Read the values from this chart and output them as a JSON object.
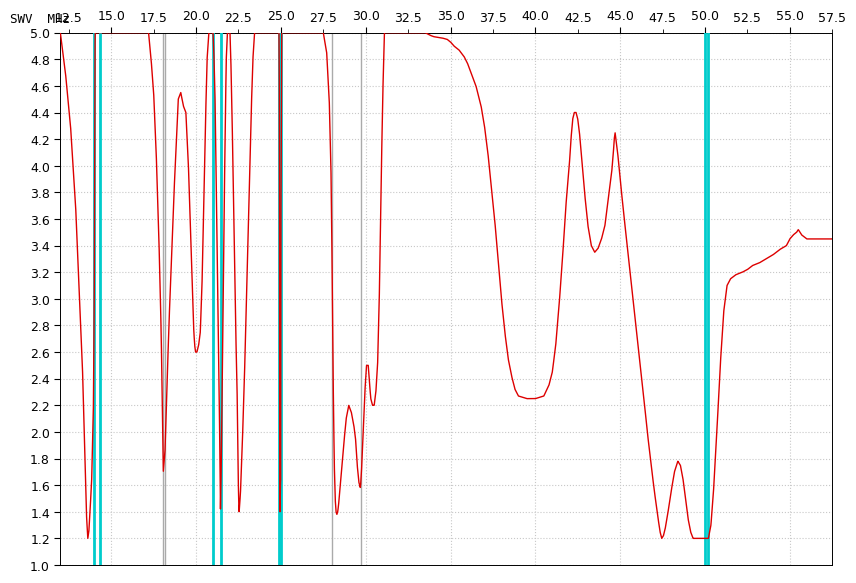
{
  "xlim": [
    12.0,
    57.5
  ],
  "ylim": [
    1.0,
    5.0
  ],
  "xticks_major": [
    15.0,
    20.0,
    25.0,
    30.0,
    35.0,
    40.0,
    45.0,
    50.0,
    55.0
  ],
  "xticks_minor_labels": [
    12.5,
    17.5,
    22.5,
    27.5,
    32.5,
    37.5,
    42.5,
    47.5,
    52.5,
    57.5
  ],
  "cyan_lines": [
    14.0,
    14.35,
    21.0,
    21.45,
    24.89,
    24.99,
    50.0,
    50.2
  ],
  "gray_lines": [
    18.068,
    18.168,
    28.0,
    29.7
  ],
  "background_color": "#ffffff",
  "grid_color": "#c8c8c8",
  "curve_color": "#dd0000",
  "cyan_color": "#00cccc",
  "gray_color": "#aaaaaa",
  "label_color": "#000000",
  "tick_fontsize": 9,
  "figsize": [
    8.39,
    5.85
  ],
  "dpi": 100,
  "waypoints": [
    [
      12.0,
      5.0
    ],
    [
      12.3,
      4.7
    ],
    [
      12.6,
      4.3
    ],
    [
      12.9,
      3.7
    ],
    [
      13.1,
      3.1
    ],
    [
      13.3,
      2.5
    ],
    [
      13.45,
      1.8
    ],
    [
      13.55,
      1.35
    ],
    [
      13.62,
      1.2
    ],
    [
      13.68,
      1.25
    ],
    [
      13.75,
      1.4
    ],
    [
      13.85,
      1.65
    ],
    [
      13.95,
      2.2
    ],
    [
      14.0,
      3.0
    ],
    [
      14.05,
      5.0
    ],
    [
      14.35,
      5.0
    ],
    [
      14.5,
      5.0
    ],
    [
      15.0,
      5.0
    ],
    [
      16.0,
      5.0
    ],
    [
      17.0,
      5.0
    ],
    [
      17.2,
      5.0
    ],
    [
      17.35,
      4.8
    ],
    [
      17.5,
      4.55
    ],
    [
      17.65,
      4.1
    ],
    [
      17.8,
      3.5
    ],
    [
      17.9,
      3.0
    ],
    [
      17.95,
      2.7
    ],
    [
      18.0,
      2.3
    ],
    [
      18.05,
      1.9
    ],
    [
      18.068,
      1.7
    ],
    [
      18.1,
      1.75
    ],
    [
      18.168,
      1.85
    ],
    [
      18.25,
      2.2
    ],
    [
      18.4,
      2.8
    ],
    [
      18.55,
      3.3
    ],
    [
      18.7,
      3.8
    ],
    [
      18.85,
      4.2
    ],
    [
      18.95,
      4.5
    ],
    [
      19.1,
      4.55
    ],
    [
      19.25,
      4.45
    ],
    [
      19.4,
      4.4
    ],
    [
      19.55,
      4.0
    ],
    [
      19.65,
      3.6
    ],
    [
      19.75,
      3.2
    ],
    [
      19.82,
      2.9
    ],
    [
      19.87,
      2.75
    ],
    [
      19.92,
      2.65
    ],
    [
      19.97,
      2.6
    ],
    [
      20.05,
      2.6
    ],
    [
      20.15,
      2.65
    ],
    [
      20.25,
      2.75
    ],
    [
      20.35,
      3.1
    ],
    [
      20.45,
      3.7
    ],
    [
      20.55,
      4.3
    ],
    [
      20.65,
      4.8
    ],
    [
      20.75,
      5.0
    ],
    [
      21.0,
      5.0
    ],
    [
      21.05,
      4.85
    ],
    [
      21.12,
      4.5
    ],
    [
      21.2,
      3.8
    ],
    [
      21.28,
      3.0
    ],
    [
      21.35,
      2.4
    ],
    [
      21.4,
      1.9
    ],
    [
      21.43,
      1.55
    ],
    [
      21.44,
      1.4
    ],
    [
      21.45,
      1.5
    ],
    [
      21.48,
      1.7
    ],
    [
      21.52,
      2.1
    ],
    [
      21.58,
      2.8
    ],
    [
      21.65,
      3.6
    ],
    [
      21.72,
      4.3
    ],
    [
      21.78,
      4.8
    ],
    [
      21.85,
      5.0
    ],
    [
      22.0,
      5.0
    ],
    [
      22.05,
      4.8
    ],
    [
      22.12,
      4.4
    ],
    [
      22.2,
      3.8
    ],
    [
      22.28,
      3.2
    ],
    [
      22.35,
      2.7
    ],
    [
      22.42,
      2.3
    ],
    [
      22.47,
      1.8
    ],
    [
      22.5,
      1.55
    ],
    [
      22.52,
      1.45
    ],
    [
      22.54,
      1.4
    ],
    [
      22.57,
      1.45
    ],
    [
      22.62,
      1.55
    ],
    [
      22.68,
      1.75
    ],
    [
      22.75,
      2.0
    ],
    [
      22.85,
      2.4
    ],
    [
      22.95,
      2.9
    ],
    [
      23.05,
      3.4
    ],
    [
      23.15,
      3.9
    ],
    [
      23.25,
      4.4
    ],
    [
      23.35,
      4.8
    ],
    [
      23.45,
      5.0
    ],
    [
      24.89,
      5.0
    ],
    [
      24.91,
      4.5
    ],
    [
      24.92,
      3.5
    ],
    [
      24.925,
      2.5
    ],
    [
      24.93,
      1.8
    ],
    [
      24.935,
      1.5
    ],
    [
      24.94,
      1.4
    ],
    [
      24.945,
      1.4
    ],
    [
      24.95,
      1.42
    ],
    [
      24.955,
      1.45
    ],
    [
      24.96,
      1.5
    ],
    [
      24.97,
      1.6
    ],
    [
      24.975,
      1.62
    ],
    [
      24.98,
      1.62
    ],
    [
      24.985,
      1.62
    ],
    [
      24.99,
      1.65
    ],
    [
      24.995,
      2.2
    ],
    [
      25.0,
      3.5
    ],
    [
      25.05,
      5.0
    ],
    [
      25.5,
      5.0
    ],
    [
      26.0,
      5.0
    ],
    [
      27.0,
      5.0
    ],
    [
      27.5,
      5.0
    ],
    [
      27.7,
      4.85
    ],
    [
      27.85,
      4.5
    ],
    [
      27.95,
      4.0
    ],
    [
      28.0,
      3.5
    ],
    [
      28.05,
      2.8
    ],
    [
      28.1,
      2.2
    ],
    [
      28.15,
      1.75
    ],
    [
      28.2,
      1.5
    ],
    [
      28.25,
      1.4
    ],
    [
      28.3,
      1.38
    ],
    [
      28.35,
      1.4
    ],
    [
      28.4,
      1.45
    ],
    [
      28.5,
      1.6
    ],
    [
      28.6,
      1.75
    ],
    [
      28.7,
      1.9
    ],
    [
      28.85,
      2.1
    ],
    [
      29.0,
      2.2
    ],
    [
      29.15,
      2.15
    ],
    [
      29.3,
      2.05
    ],
    [
      29.4,
      1.95
    ],
    [
      29.5,
      1.75
    ],
    [
      29.6,
      1.62
    ],
    [
      29.65,
      1.6
    ],
    [
      29.68,
      1.58
    ],
    [
      29.7,
      1.6
    ],
    [
      29.75,
      1.7
    ],
    [
      29.85,
      2.0
    ],
    [
      29.95,
      2.3
    ],
    [
      30.05,
      2.5
    ],
    [
      30.15,
      2.5
    ],
    [
      30.2,
      2.4
    ],
    [
      30.3,
      2.25
    ],
    [
      30.4,
      2.2
    ],
    [
      30.5,
      2.2
    ],
    [
      30.6,
      2.3
    ],
    [
      30.7,
      2.5
    ],
    [
      30.8,
      3.0
    ],
    [
      30.9,
      3.8
    ],
    [
      31.0,
      4.5
    ],
    [
      31.1,
      5.0
    ],
    [
      32.0,
      5.0
    ],
    [
      33.0,
      5.0
    ],
    [
      33.5,
      5.0
    ],
    [
      33.8,
      4.98
    ],
    [
      34.0,
      4.97
    ],
    [
      34.5,
      4.96
    ],
    [
      34.8,
      4.95
    ],
    [
      35.0,
      4.93
    ],
    [
      35.2,
      4.9
    ],
    [
      35.5,
      4.87
    ],
    [
      35.8,
      4.82
    ],
    [
      36.0,
      4.77
    ],
    [
      36.2,
      4.7
    ],
    [
      36.5,
      4.6
    ],
    [
      36.8,
      4.45
    ],
    [
      37.0,
      4.3
    ],
    [
      37.2,
      4.1
    ],
    [
      37.4,
      3.85
    ],
    [
      37.6,
      3.6
    ],
    [
      37.8,
      3.3
    ],
    [
      38.0,
      3.0
    ],
    [
      38.2,
      2.75
    ],
    [
      38.4,
      2.55
    ],
    [
      38.6,
      2.42
    ],
    [
      38.8,
      2.32
    ],
    [
      39.0,
      2.27
    ],
    [
      39.5,
      2.25
    ],
    [
      40.0,
      2.25
    ],
    [
      40.5,
      2.27
    ],
    [
      40.8,
      2.35
    ],
    [
      41.0,
      2.45
    ],
    [
      41.2,
      2.65
    ],
    [
      41.4,
      2.95
    ],
    [
      41.6,
      3.3
    ],
    [
      41.8,
      3.7
    ],
    [
      42.0,
      4.0
    ],
    [
      42.1,
      4.2
    ],
    [
      42.2,
      4.35
    ],
    [
      42.3,
      4.4
    ],
    [
      42.4,
      4.4
    ],
    [
      42.5,
      4.35
    ],
    [
      42.6,
      4.25
    ],
    [
      42.7,
      4.1
    ],
    [
      42.9,
      3.8
    ],
    [
      43.1,
      3.55
    ],
    [
      43.3,
      3.4
    ],
    [
      43.5,
      3.35
    ],
    [
      43.7,
      3.38
    ],
    [
      43.9,
      3.45
    ],
    [
      44.1,
      3.55
    ],
    [
      44.3,
      3.75
    ],
    [
      44.5,
      3.95
    ],
    [
      44.6,
      4.1
    ],
    [
      44.65,
      4.2
    ],
    [
      44.7,
      4.25
    ],
    [
      44.75,
      4.2
    ],
    [
      44.85,
      4.1
    ],
    [
      45.0,
      3.9
    ],
    [
      45.2,
      3.65
    ],
    [
      45.5,
      3.3
    ],
    [
      45.8,
      2.95
    ],
    [
      46.1,
      2.6
    ],
    [
      46.4,
      2.25
    ],
    [
      46.6,
      2.0
    ],
    [
      46.8,
      1.78
    ],
    [
      47.0,
      1.57
    ],
    [
      47.2,
      1.38
    ],
    [
      47.35,
      1.25
    ],
    [
      47.45,
      1.2
    ],
    [
      47.55,
      1.22
    ],
    [
      47.65,
      1.27
    ],
    [
      47.8,
      1.38
    ],
    [
      48.0,
      1.55
    ],
    [
      48.2,
      1.7
    ],
    [
      48.4,
      1.78
    ],
    [
      48.55,
      1.75
    ],
    [
      48.7,
      1.65
    ],
    [
      48.85,
      1.5
    ],
    [
      49.0,
      1.35
    ],
    [
      49.15,
      1.25
    ],
    [
      49.3,
      1.2
    ],
    [
      49.5,
      1.2
    ],
    [
      49.7,
      1.2
    ],
    [
      49.85,
      1.2
    ],
    [
      50.0,
      1.2
    ],
    [
      50.2,
      1.2
    ],
    [
      50.35,
      1.3
    ],
    [
      50.5,
      1.55
    ],
    [
      50.7,
      2.0
    ],
    [
      50.9,
      2.5
    ],
    [
      51.1,
      2.9
    ],
    [
      51.3,
      3.1
    ],
    [
      51.5,
      3.15
    ],
    [
      51.8,
      3.18
    ],
    [
      52.2,
      3.2
    ],
    [
      52.5,
      3.22
    ],
    [
      52.8,
      3.25
    ],
    [
      53.2,
      3.27
    ],
    [
      53.6,
      3.3
    ],
    [
      54.0,
      3.33
    ],
    [
      54.4,
      3.37
    ],
    [
      54.8,
      3.4
    ],
    [
      55.0,
      3.45
    ],
    [
      55.2,
      3.48
    ],
    [
      55.4,
      3.5
    ],
    [
      55.5,
      3.52
    ],
    [
      55.6,
      3.5
    ],
    [
      55.7,
      3.48
    ],
    [
      55.8,
      3.47
    ],
    [
      55.9,
      3.46
    ],
    [
      56.0,
      3.45
    ],
    [
      56.5,
      3.45
    ],
    [
      57.0,
      3.45
    ],
    [
      57.5,
      3.45
    ]
  ]
}
